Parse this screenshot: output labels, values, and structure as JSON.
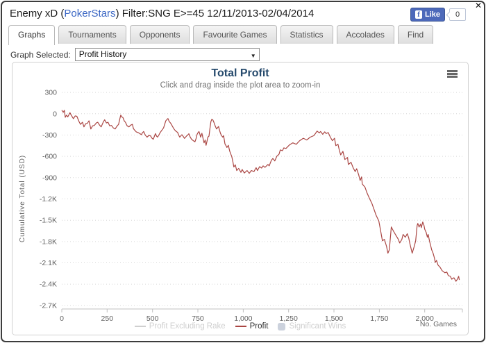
{
  "window": {
    "close_icon": "✕"
  },
  "header": {
    "title_prefix": "Enemy xD (",
    "site": "PokerStars",
    "title_suffix": ") Filter:SNG E>=45 12/11/2013-02/04/2014",
    "like_label": "Like",
    "like_count": "0",
    "facebook_glyph": "f"
  },
  "tabs": [
    {
      "label": "Graphs",
      "active": true
    },
    {
      "label": "Tournaments",
      "active": false
    },
    {
      "label": "Opponents",
      "active": false
    },
    {
      "label": "Favourite Games",
      "active": false
    },
    {
      "label": "Statistics",
      "active": false
    },
    {
      "label": "Accolades",
      "active": false
    },
    {
      "label": "Find",
      "active": false
    }
  ],
  "graph_selector": {
    "label": "Graph Selected:",
    "value": "Profit History",
    "arrow": "▼"
  },
  "chart_data": {
    "type": "line",
    "title": "Total Profit",
    "subtitle": "Click and drag inside the plot area to zoom-in",
    "xlabel": "No. Games",
    "ylabel": "Cumulative Total (USD)",
    "grid": "dotted-horizontal",
    "legend_position": "bottom-center",
    "colors": {
      "title": "#274b6d",
      "series": "#AA4643"
    },
    "x_axis": {
      "range": [
        0,
        2200
      ],
      "ticks": [
        {
          "value": 0,
          "label": "0"
        },
        {
          "value": 250,
          "label": "250"
        },
        {
          "value": 500,
          "label": "500"
        },
        {
          "value": 750,
          "label": "750"
        },
        {
          "value": 1000,
          "label": "1,000"
        },
        {
          "value": 1250,
          "label": "1,250"
        },
        {
          "value": 1500,
          "label": "1,500"
        },
        {
          "value": 1750,
          "label": "1,750"
        },
        {
          "value": 2000,
          "label": "2,000"
        }
      ]
    },
    "y_axis": {
      "range": [
        -2750,
        350
      ],
      "ticks": [
        {
          "value": 300,
          "label": "300"
        },
        {
          "value": 0,
          "label": "0"
        },
        {
          "value": -300,
          "label": "-300"
        },
        {
          "value": -600,
          "label": "-600"
        },
        {
          "value": -900,
          "label": "-900"
        },
        {
          "value": -1200,
          "label": "-1.2K"
        },
        {
          "value": -1500,
          "label": "-1.5K"
        },
        {
          "value": -1800,
          "label": "-1.8K"
        },
        {
          "value": -2100,
          "label": "-2.1K"
        },
        {
          "value": -2400,
          "label": "-2.4K"
        },
        {
          "value": -2700,
          "label": "-2.7K"
        }
      ]
    },
    "legend": [
      {
        "label": "Profit Excluding Rake",
        "swatch": "line",
        "swatch_color": "#cfcfcf",
        "text_color": "#cfcfcf",
        "disabled": true
      },
      {
        "label": "Profit",
        "swatch": "line",
        "swatch_color": "#AA4643",
        "text_color": "#303030",
        "disabled": false
      },
      {
        "label": "Significant Wins",
        "swatch": "box",
        "swatch_color": "#ccd2dd",
        "text_color": "#cfcfcf",
        "disabled": true
      }
    ],
    "series": [
      {
        "name": "Profit",
        "color": "#AA4643",
        "points": [
          [
            0,
            50
          ],
          [
            8,
            20
          ],
          [
            14,
            48
          ],
          [
            19,
            -50
          ],
          [
            26,
            -20
          ],
          [
            33,
            -45
          ],
          [
            45,
            15
          ],
          [
            52,
            -20
          ],
          [
            64,
            -70
          ],
          [
            74,
            -30
          ],
          [
            83,
            -36
          ],
          [
            95,
            -110
          ],
          [
            103,
            -150
          ],
          [
            114,
            -120
          ],
          [
            122,
            -185
          ],
          [
            132,
            -140
          ],
          [
            141,
            -135
          ],
          [
            150,
            -100
          ],
          [
            160,
            -215
          ],
          [
            170,
            -170
          ],
          [
            179,
            -165
          ],
          [
            190,
            -130
          ],
          [
            198,
            -120
          ],
          [
            208,
            -160
          ],
          [
            217,
            -185
          ],
          [
            228,
            -120
          ],
          [
            236,
            -85
          ],
          [
            246,
            -130
          ],
          [
            255,
            -120
          ],
          [
            264,
            -170
          ],
          [
            274,
            -165
          ],
          [
            284,
            -200
          ],
          [
            294,
            -215
          ],
          [
            304,
            -175
          ],
          [
            313,
            -150
          ],
          [
            319,
            -80
          ],
          [
            325,
            -20
          ],
          [
            331,
            -45
          ],
          [
            337,
            -55
          ],
          [
            344,
            -100
          ],
          [
            351,
            -120
          ],
          [
            360,
            -170
          ],
          [
            370,
            -185
          ],
          [
            380,
            -160
          ],
          [
            389,
            -150
          ],
          [
            395,
            -210
          ],
          [
            401,
            -230
          ],
          [
            410,
            -255
          ],
          [
            420,
            -265
          ],
          [
            430,
            -280
          ],
          [
            439,
            -295
          ],
          [
            444,
            -270
          ],
          [
            451,
            -250
          ],
          [
            460,
            -300
          ],
          [
            470,
            -330
          ],
          [
            480,
            -305
          ],
          [
            489,
            -312
          ],
          [
            497,
            -345
          ],
          [
            504,
            -360
          ],
          [
            510,
            -320
          ],
          [
            516,
            -280
          ],
          [
            522,
            -315
          ],
          [
            528,
            -330
          ],
          [
            535,
            -300
          ],
          [
            542,
            -265
          ],
          [
            552,
            -230
          ],
          [
            561,
            -200
          ],
          [
            567,
            -150
          ],
          [
            573,
            -100
          ],
          [
            580,
            -80
          ],
          [
            585,
            -68
          ],
          [
            592,
            -110
          ],
          [
            600,
            -133
          ],
          [
            606,
            -160
          ],
          [
            611,
            -183
          ],
          [
            617,
            -210
          ],
          [
            623,
            -230
          ],
          [
            631,
            -250
          ],
          [
            638,
            -262
          ],
          [
            644,
            -300
          ],
          [
            650,
            -330
          ],
          [
            656,
            -310
          ],
          [
            662,
            -295
          ],
          [
            669,
            -320
          ],
          [
            676,
            -347
          ],
          [
            682,
            -330
          ],
          [
            688,
            -312
          ],
          [
            694,
            -300
          ],
          [
            700,
            -282
          ],
          [
            708,
            -330
          ],
          [
            715,
            -360
          ],
          [
            725,
            -380
          ],
          [
            734,
            -395
          ],
          [
            740,
            -350
          ],
          [
            745,
            -295
          ],
          [
            750,
            -270
          ],
          [
            756,
            -250
          ],
          [
            761,
            -290
          ],
          [
            765,
            -330
          ],
          [
            769,
            -300
          ],
          [
            772,
            -275
          ],
          [
            778,
            -340
          ],
          [
            784,
            -410
          ],
          [
            790,
            -370
          ],
          [
            795,
            -445
          ],
          [
            800,
            -390
          ],
          [
            805,
            -330
          ],
          [
            811,
            -315
          ],
          [
            817,
            -200
          ],
          [
            822,
            -110
          ],
          [
            827,
            -78
          ],
          [
            833,
            -90
          ],
          [
            838,
            -118
          ],
          [
            845,
            -170
          ],
          [
            853,
            -215
          ],
          [
            859,
            -195
          ],
          [
            864,
            -180
          ],
          [
            869,
            -230
          ],
          [
            875,
            -280
          ],
          [
            881,
            -310
          ],
          [
            887,
            -330
          ],
          [
            892,
            -310
          ],
          [
            899,
            -425
          ],
          [
            905,
            -450
          ],
          [
            910,
            -475
          ],
          [
            918,
            -445
          ],
          [
            925,
            -525
          ],
          [
            931,
            -565
          ],
          [
            937,
            -605
          ],
          [
            943,
            -680
          ],
          [
            948,
            -750
          ],
          [
            956,
            -720
          ],
          [
            964,
            -800
          ],
          [
            975,
            -770
          ],
          [
            987,
            -825
          ],
          [
            994,
            -785
          ],
          [
            1006,
            -835
          ],
          [
            1021,
            -800
          ],
          [
            1033,
            -840
          ],
          [
            1044,
            -800
          ],
          [
            1059,
            -815
          ],
          [
            1071,
            -760
          ],
          [
            1078,
            -800
          ],
          [
            1090,
            -745
          ],
          [
            1101,
            -765
          ],
          [
            1109,
            -735
          ],
          [
            1120,
            -755
          ],
          [
            1136,
            -715
          ],
          [
            1143,
            -735
          ],
          [
            1155,
            -655
          ],
          [
            1163,
            -630
          ],
          [
            1174,
            -665
          ],
          [
            1185,
            -600
          ],
          [
            1197,
            -570
          ],
          [
            1204,
            -510
          ],
          [
            1216,
            -520
          ],
          [
            1224,
            -480
          ],
          [
            1235,
            -490
          ],
          [
            1254,
            -440
          ],
          [
            1273,
            -410
          ],
          [
            1292,
            -430
          ],
          [
            1311,
            -380
          ],
          [
            1331,
            -345
          ],
          [
            1350,
            -370
          ],
          [
            1369,
            -330
          ],
          [
            1388,
            -310
          ],
          [
            1396,
            -285
          ],
          [
            1407,
            -245
          ],
          [
            1419,
            -270
          ],
          [
            1426,
            -250
          ],
          [
            1438,
            -290
          ],
          [
            1449,
            -255
          ],
          [
            1457,
            -280
          ],
          [
            1468,
            -265
          ],
          [
            1480,
            -330
          ],
          [
            1491,
            -380
          ],
          [
            1503,
            -345
          ],
          [
            1510,
            -450
          ],
          [
            1522,
            -430
          ],
          [
            1530,
            -520
          ],
          [
            1537,
            -580
          ],
          [
            1549,
            -530
          ],
          [
            1560,
            -645
          ],
          [
            1575,
            -615
          ],
          [
            1579,
            -715
          ],
          [
            1594,
            -685
          ],
          [
            1606,
            -765
          ],
          [
            1617,
            -815
          ],
          [
            1625,
            -775
          ],
          [
            1636,
            -860
          ],
          [
            1644,
            -940
          ],
          [
            1652,
            -890
          ],
          [
            1656,
            -990
          ],
          [
            1671,
            -1035
          ],
          [
            1682,
            -1115
          ],
          [
            1694,
            -1185
          ],
          [
            1709,
            -1265
          ],
          [
            1721,
            -1350
          ],
          [
            1732,
            -1430
          ],
          [
            1747,
            -1510
          ],
          [
            1755,
            -1620
          ],
          [
            1767,
            -1790
          ],
          [
            1778,
            -1770
          ],
          [
            1790,
            -1870
          ],
          [
            1797,
            -1965
          ],
          [
            1805,
            -1915
          ],
          [
            1816,
            -1595
          ],
          [
            1828,
            -1655
          ],
          [
            1843,
            -1720
          ],
          [
            1855,
            -1770
          ],
          [
            1862,
            -1820
          ],
          [
            1874,
            -1770
          ],
          [
            1881,
            -1700
          ],
          [
            1893,
            -1740
          ],
          [
            1904,
            -1690
          ],
          [
            1912,
            -1750
          ],
          [
            1919,
            -1840
          ],
          [
            1931,
            -1965
          ],
          [
            1942,
            -1870
          ],
          [
            1950,
            -1790
          ],
          [
            1958,
            -1575
          ],
          [
            1962,
            -1545
          ],
          [
            1969,
            -1595
          ],
          [
            1977,
            -1555
          ],
          [
            1981,
            -1605
          ],
          [
            1989,
            -1525
          ],
          [
            1996,
            -1575
          ],
          [
            2000,
            -1625
          ],
          [
            2008,
            -1670
          ],
          [
            2015,
            -1740
          ],
          [
            2019,
            -1700
          ],
          [
            2027,
            -1800
          ],
          [
            2034,
            -1870
          ],
          [
            2038,
            -1915
          ],
          [
            2046,
            -1965
          ],
          [
            2054,
            -2035
          ],
          [
            2058,
            -2095
          ],
          [
            2065,
            -2065
          ],
          [
            2073,
            -2130
          ],
          [
            2084,
            -2160
          ],
          [
            2096,
            -2210
          ],
          [
            2111,
            -2240
          ],
          [
            2122,
            -2230
          ],
          [
            2130,
            -2280
          ],
          [
            2141,
            -2290
          ],
          [
            2149,
            -2330
          ],
          [
            2161,
            -2310
          ],
          [
            2168,
            -2340
          ],
          [
            2172,
            -2360
          ],
          [
            2180,
            -2330
          ],
          [
            2187,
            -2290
          ],
          [
            2191,
            -2340
          ]
        ]
      }
    ]
  }
}
